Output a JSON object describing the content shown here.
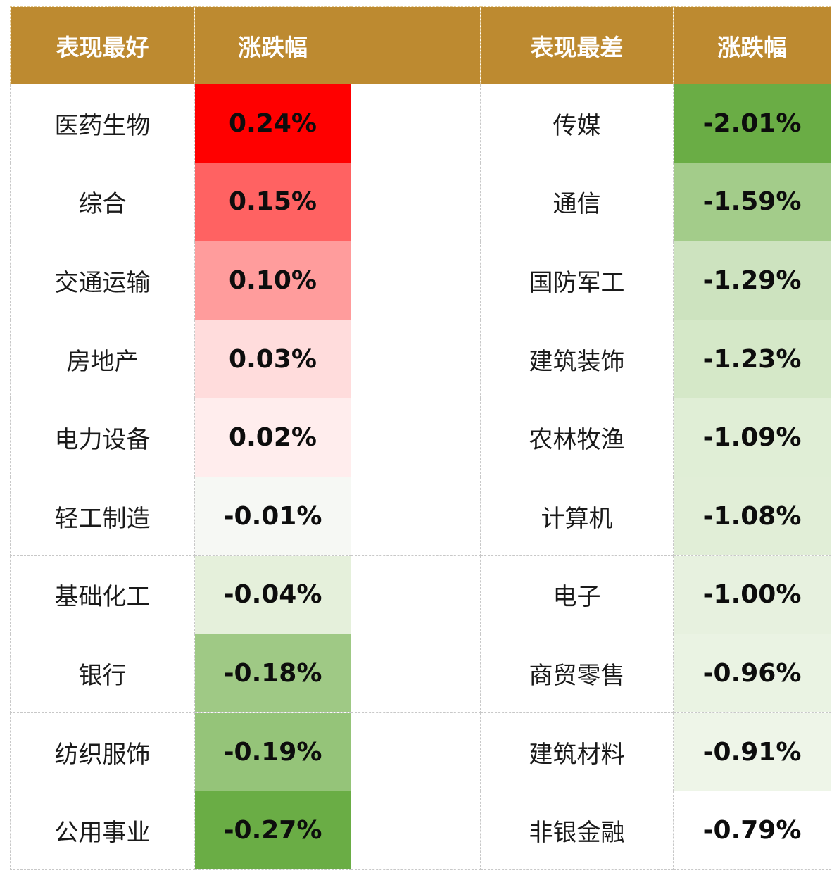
{
  "chart_data": {
    "type": "table",
    "columns": [
      "表现最好",
      "涨跌幅",
      "",
      "表现最差",
      "涨跌幅"
    ],
    "best": [
      {
        "name": "医药生物",
        "value": "0.24%",
        "color": "#ff0000"
      },
      {
        "name": "综合",
        "value": "0.15%",
        "color": "#ff6262"
      },
      {
        "name": "交通运输",
        "value": "0.10%",
        "color": "#ff9c9c"
      },
      {
        "name": "房地产",
        "value": "0.03%",
        "color": "#ffdcdc"
      },
      {
        "name": "电力设备",
        "value": "0.02%",
        "color": "#ffeded"
      },
      {
        "name": "轻工制造",
        "value": "-0.01%",
        "color": "#f6f8f4"
      },
      {
        "name": "基础化工",
        "value": "-0.04%",
        "color": "#e5f0db"
      },
      {
        "name": "银行",
        "value": "-0.18%",
        "color": "#9fc985"
      },
      {
        "name": "纺织服饰",
        "value": "-0.19%",
        "color": "#95c479"
      },
      {
        "name": "公用事业",
        "value": "-0.27%",
        "color": "#6aad45"
      }
    ],
    "worst": [
      {
        "name": "传媒",
        "value": "-2.01%",
        "color": "#6aad45"
      },
      {
        "name": "通信",
        "value": "-1.59%",
        "color": "#a3cc8a"
      },
      {
        "name": "国防军工",
        "value": "-1.29%",
        "color": "#cde3bf"
      },
      {
        "name": "建筑装饰",
        "value": "-1.23%",
        "color": "#d5e8c8"
      },
      {
        "name": "农林牧渔",
        "value": "-1.09%",
        "color": "#e0eed6"
      },
      {
        "name": "计算机",
        "value": "-1.08%",
        "color": "#e1eed7"
      },
      {
        "name": "电子",
        "value": "-1.00%",
        "color": "#e7f1df"
      },
      {
        "name": "商贸零售",
        "value": "-0.96%",
        "color": "#eaf3e3"
      },
      {
        "name": "建筑材料",
        "value": "-0.91%",
        "color": "#eef5e8"
      },
      {
        "name": "非银金融",
        "value": "-0.79%",
        "color": "#ffffff"
      }
    ]
  }
}
